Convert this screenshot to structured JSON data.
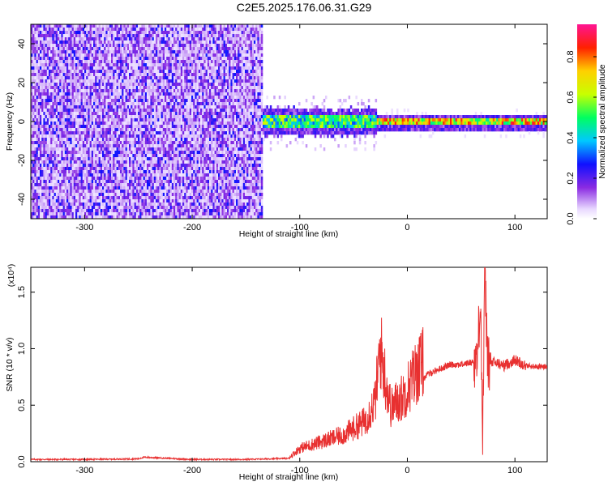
{
  "title": "C2E5.2025.176.06.31.G29",
  "chart_data": [
    {
      "type": "heatmap",
      "xlabel": "Height of straight line (km)",
      "ylabel": "Frequency (Hz)",
      "xlim": [
        -350,
        130
      ],
      "ylim": [
        -50,
        50
      ],
      "xticks": [
        "-300",
        "-200",
        "-100",
        "0",
        "100"
      ],
      "yticks": [
        "-40",
        "-20",
        "0",
        "20",
        "40"
      ],
      "colorbar": {
        "label": "Normalized spectral amplitude",
        "range": [
          0,
          0.96
        ],
        "ticks": [
          "0.0",
          "0.2",
          "0.4",
          "0.6",
          "0.8"
        ]
      },
      "description_points": [
        {
          "x_range": [
            -350,
            -135
          ],
          "freq_range": [
            -50,
            50
          ],
          "amplitude": 0.2
        },
        {
          "x_range": [
            -135,
            -30
          ],
          "freq_range": [
            -6,
            6
          ],
          "amplitude": 0.55
        },
        {
          "x_range": [
            -30,
            130
          ],
          "freq_range": [
            -2,
            3
          ],
          "amplitude": 0.75
        }
      ]
    },
    {
      "type": "line",
      "xlabel": "Height of straight line (km)",
      "ylabel": "SNR (10 * v/v)",
      "scale_label": "(x10⁴)",
      "xlim": [
        -350,
        130
      ],
      "ylim": [
        0,
        1.72
      ],
      "xticks": [
        "-300",
        "-200",
        "-100",
        "0",
        "100"
      ],
      "yticks": [
        "0.0",
        "0.5",
        "1.0",
        "1.5"
      ],
      "series": [
        {
          "color": "#e83030",
          "x": [
            -350,
            -300,
            -250,
            -245,
            -200,
            -150,
            -110,
            -100,
            -80,
            -60,
            -40,
            -30,
            -25,
            -20,
            -15,
            -10,
            -5,
            0,
            10,
            20,
            30,
            40,
            50,
            60,
            65,
            68,
            70,
            72,
            75,
            80,
            90,
            100,
            110,
            120,
            130
          ],
          "y": [
            0.02,
            0.02,
            0.025,
            0.04,
            0.02,
            0.02,
            0.03,
            0.1,
            0.15,
            0.2,
            0.3,
            0.45,
            0.85,
            0.6,
            0.4,
            0.45,
            0.48,
            0.55,
            0.7,
            0.78,
            0.82,
            0.86,
            0.86,
            0.88,
            0.9,
            1.5,
            0.2,
            1.65,
            0.85,
            0.88,
            0.85,
            0.9,
            0.85,
            0.84,
            0.84
          ]
        }
      ]
    }
  ]
}
